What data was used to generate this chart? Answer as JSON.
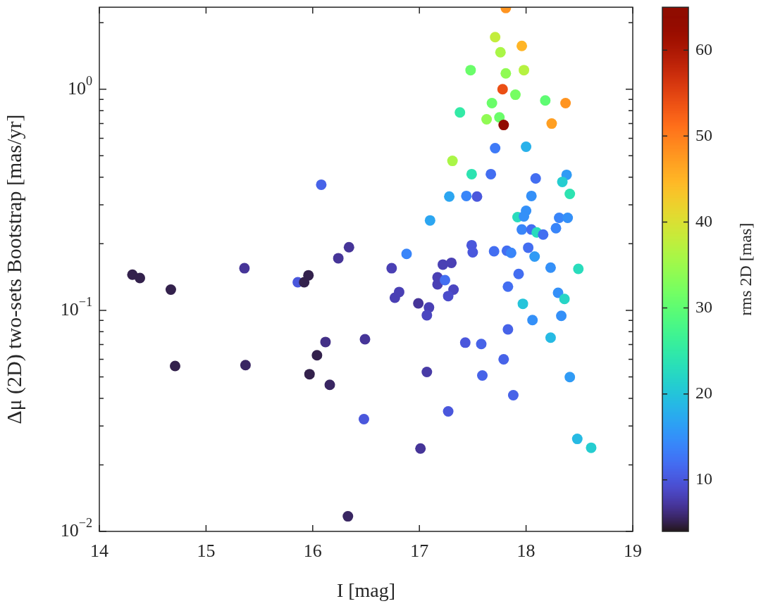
{
  "chart_data": {
    "type": "scatter",
    "xlabel": "I [mag]",
    "ylabel": "Δμ (2D) two-sets Bootstrap [mas/yr]",
    "clabel": "rms 2D [mas]",
    "log": "y",
    "marker": "circle",
    "xlim": [
      14,
      19
    ],
    "xticks": [
      14,
      15,
      16,
      17,
      18,
      19
    ],
    "ylim": [
      0.01,
      2.35
    ],
    "yticks": [
      {
        "value": 0.01,
        "label": "10$^{−2}$"
      },
      {
        "value": 0.02,
        "label": null
      },
      {
        "value": 0.03,
        "label": null
      },
      {
        "value": 0.04,
        "label": null
      },
      {
        "value": 0.05,
        "label": null
      },
      {
        "value": 0.06,
        "label": null
      },
      {
        "value": 0.07,
        "label": null
      },
      {
        "value": 0.08,
        "label": null
      },
      {
        "value": 0.09,
        "label": null
      },
      {
        "value": 0.1,
        "label": "10$^{−1}$"
      },
      {
        "value": 0.2,
        "label": null
      },
      {
        "value": 0.3,
        "label": null
      },
      {
        "value": 0.4,
        "label": null
      },
      {
        "value": 0.5,
        "label": null
      },
      {
        "value": 0.6,
        "label": null
      },
      {
        "value": 0.7,
        "label": null
      },
      {
        "value": 0.8,
        "label": null
      },
      {
        "value": 0.9,
        "label": null
      },
      {
        "value": 1,
        "label": "10$^{0}$"
      },
      {
        "value": 2,
        "label": null
      }
    ],
    "clim": [
      4,
      65
    ],
    "cticks": [
      10,
      20,
      30,
      40,
      50,
      60
    ],
    "x": [
      14.31,
      14.38,
      14.67,
      14.71,
      15.36,
      15.37,
      15.86,
      15.92,
      15.96,
      15.97,
      16.04,
      16.12,
      16.16,
      16.24,
      16.34,
      16.08,
      16.49,
      16.48,
      16.33,
      16.74,
      16.77,
      16.81,
      16.99,
      17.09,
      17.07,
      17.07,
      17.01,
      17.27,
      17.17,
      17.17,
      17.24,
      17.22,
      17.3,
      17.32,
      17.27,
      16.88,
      17.1,
      17.28,
      17.44,
      17.54,
      17.49,
      17.67,
      17.49,
      17.5,
      17.7,
      17.82,
      17.86,
      18.02,
      18.08,
      17.93,
      17.83,
      18.23,
      18.49,
      18.3,
      18.36,
      18.33,
      17.97,
      18.06,
      17.83,
      18.23,
      17.43,
      17.58,
      17.79,
      17.59,
      17.88,
      18.41,
      18.48,
      18.61,
      18.09,
      18.38,
      18.34,
      18.41,
      18.05,
      18.0,
      17.92,
      17.98,
      17.96,
      18.05,
      18.1,
      18.16,
      18.31,
      18.39,
      18.28,
      17.81,
      17.71,
      17.96,
      17.76,
      17.48,
      17.81,
      17.98,
      17.78,
      17.9,
      17.68,
      18.18,
      18.37,
      17.38,
      17.63,
      17.75,
      17.79,
      18.24,
      17.71,
      18.0,
      17.31
    ],
    "values": [
      0.145,
      0.14,
      0.124,
      0.056,
      0.155,
      0.0565,
      0.134,
      0.134,
      0.144,
      0.0514,
      0.0626,
      0.0719,
      0.046,
      0.172,
      0.193,
      0.37,
      0.074,
      0.0322,
      0.0117,
      0.155,
      0.114,
      0.121,
      0.1075,
      0.103,
      0.095,
      0.0526,
      0.0237,
      0.0349,
      0.141,
      0.131,
      0.137,
      0.161,
      0.164,
      0.124,
      0.116,
      0.18,
      0.255,
      0.327,
      0.329,
      0.327,
      0.413,
      0.413,
      0.197,
      0.183,
      0.185,
      0.186,
      0.182,
      0.192,
      0.175,
      0.146,
      0.128,
      0.156,
      0.154,
      0.12,
      0.1125,
      0.0944,
      0.107,
      0.0903,
      0.082,
      0.0752,
      0.0714,
      0.0704,
      0.06,
      0.0507,
      0.0413,
      0.0499,
      0.0262,
      0.0239,
      0.395,
      0.41,
      0.381,
      0.336,
      0.329,
      0.282,
      0.264,
      0.266,
      0.232,
      0.232,
      0.225,
      0.22,
      0.262,
      0.262,
      0.235,
      2.33,
      1.72,
      1.57,
      1.47,
      1.22,
      1.18,
      1.22,
      1.0,
      0.944,
      0.865,
      0.889,
      0.865,
      0.785,
      0.731,
      0.746,
      0.689,
      0.699,
      0.541,
      0.549,
      0.474
    ],
    "cvalues": [
      5,
      5,
      5,
      5,
      7,
      5.5,
      10,
      5,
      5,
      5,
      5,
      6.5,
      5.5,
      7,
      7,
      11,
      7,
      10,
      5.5,
      8,
      8,
      8,
      7,
      8,
      8.5,
      7.5,
      7,
      10,
      8,
      8,
      12,
      8,
      8,
      8.5,
      9,
      14,
      17,
      17,
      14,
      10,
      24,
      12,
      10,
      10,
      12,
      12,
      14,
      12,
      16,
      12,
      12,
      15,
      23,
      15,
      22,
      15,
      20,
      15,
      11,
      19,
      10,
      11,
      11,
      11,
      11,
      16,
      19,
      21,
      12,
      16,
      21,
      24,
      15,
      15,
      23,
      15,
      14,
      12,
      23,
      12,
      14,
      15,
      14,
      48,
      38,
      45,
      36,
      31,
      34,
      37,
      54,
      32,
      31,
      30,
      48,
      25,
      34,
      31,
      64,
      47,
      13,
      18,
      36
    ]
  }
}
